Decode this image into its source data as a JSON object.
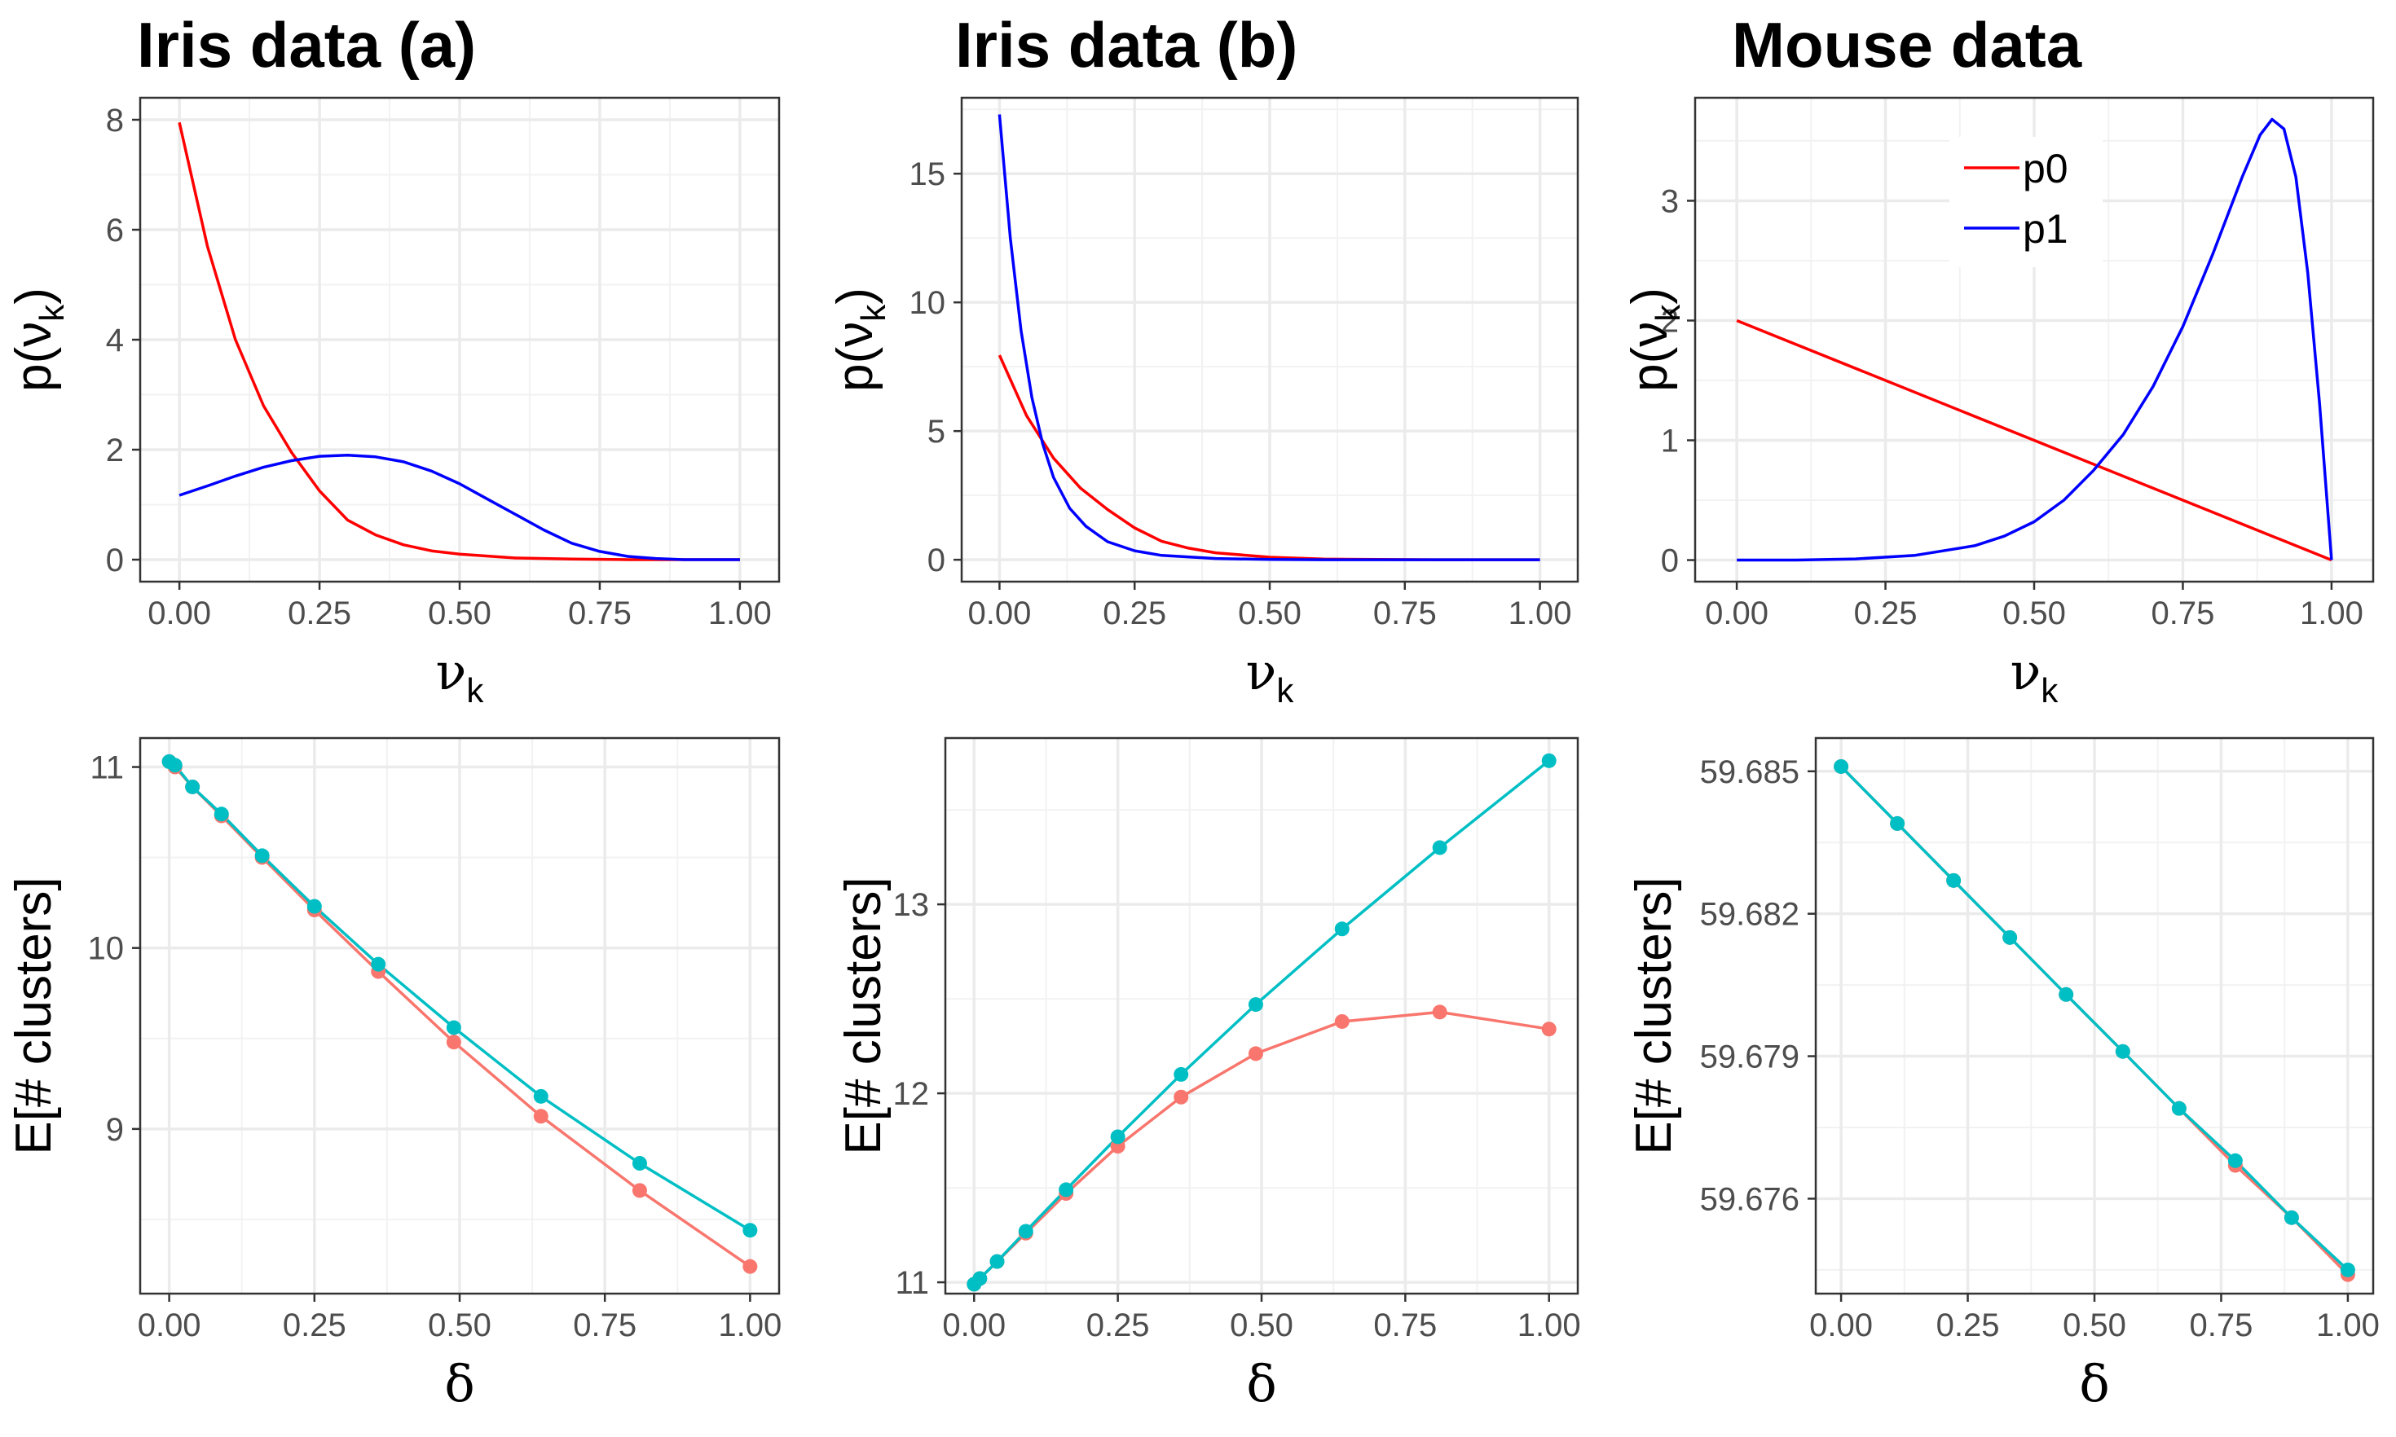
{
  "chart_data": [
    {
      "id": "iris-a-density",
      "type": "line",
      "title": "Iris data (a)",
      "xlabel": "ν",
      "xlabel_sub": "k",
      "ylabel_pre": "p(ν",
      "ylabel_sub": "k",
      "ylabel_post": ")",
      "xlim": [
        -0.07,
        1.07
      ],
      "ylim": [
        -0.4,
        8.4
      ],
      "xticks": [
        0,
        0.25,
        0.5,
        0.75,
        1.0
      ],
      "xtick_labels": [
        "0.00",
        "0.25",
        "0.50",
        "0.75",
        "1.00"
      ],
      "yticks": [
        0,
        2,
        4,
        6,
        8
      ],
      "ytick_labels": [
        "0",
        "2",
        "4",
        "6",
        "8"
      ],
      "grid": true,
      "series": [
        {
          "color": "#ff0000",
          "x": [
            0,
            0.05,
            0.1,
            0.15,
            0.2,
            0.25,
            0.3,
            0.35,
            0.4,
            0.45,
            0.5,
            0.6,
            0.7,
            0.8,
            0.9,
            1.0
          ],
          "y": [
            7.95,
            5.7,
            4.0,
            2.8,
            1.95,
            1.25,
            0.72,
            0.45,
            0.27,
            0.16,
            0.1,
            0.03,
            0.01,
            0.0,
            0.0,
            0.0
          ]
        },
        {
          "color": "#0000ff",
          "x": [
            0,
            0.05,
            0.1,
            0.15,
            0.2,
            0.25,
            0.3,
            0.35,
            0.4,
            0.45,
            0.5,
            0.55,
            0.6,
            0.65,
            0.7,
            0.75,
            0.8,
            0.85,
            0.9,
            1.0
          ],
          "y": [
            1.17,
            1.34,
            1.52,
            1.68,
            1.8,
            1.88,
            1.9,
            1.87,
            1.78,
            1.61,
            1.38,
            1.1,
            0.82,
            0.54,
            0.3,
            0.15,
            0.06,
            0.02,
            0.0,
            0.0
          ]
        }
      ]
    },
    {
      "id": "iris-b-density",
      "type": "line",
      "title": "Iris data (b)",
      "xlabel": "ν",
      "xlabel_sub": "k",
      "ylabel_pre": "p(ν",
      "ylabel_sub": "k",
      "ylabel_post": ")",
      "xlim": [
        -0.07,
        1.07
      ],
      "ylim": [
        -0.85,
        17.95
      ],
      "xticks": [
        0,
        0.25,
        0.5,
        0.75,
        1.0
      ],
      "xtick_labels": [
        "0.00",
        "0.25",
        "0.50",
        "0.75",
        "1.00"
      ],
      "yticks": [
        0,
        5,
        10,
        15
      ],
      "ytick_labels": [
        "0",
        "5",
        "10",
        "15"
      ],
      "grid": true,
      "series": [
        {
          "color": "#ff0000",
          "x": [
            0,
            0.05,
            0.1,
            0.15,
            0.2,
            0.25,
            0.3,
            0.35,
            0.4,
            0.5,
            0.6,
            0.7,
            0.8,
            1.0
          ],
          "y": [
            7.95,
            5.6,
            3.95,
            2.78,
            1.95,
            1.24,
            0.72,
            0.45,
            0.27,
            0.1,
            0.03,
            0.01,
            0.0,
            0.0
          ]
        },
        {
          "color": "#0000ff",
          "x": [
            0,
            0.02,
            0.04,
            0.06,
            0.08,
            0.1,
            0.13,
            0.16,
            0.2,
            0.25,
            0.3,
            0.4,
            0.5,
            0.6,
            0.8,
            1.0
          ],
          "y": [
            17.3,
            12.5,
            8.9,
            6.3,
            4.5,
            3.2,
            2.0,
            1.3,
            0.7,
            0.35,
            0.17,
            0.05,
            0.01,
            0.0,
            0.0,
            0.0
          ]
        }
      ]
    },
    {
      "id": "mouse-density",
      "type": "line",
      "title": "Mouse data",
      "xlabel": "ν",
      "xlabel_sub": "k",
      "ylabel_pre": "p(ν",
      "ylabel_sub": "k",
      "ylabel_post": ")",
      "xlim": [
        -0.07,
        1.07
      ],
      "ylim": [
        -0.18,
        3.86
      ],
      "xticks": [
        0,
        0.25,
        0.5,
        0.75,
        1.0
      ],
      "xtick_labels": [
        "0.00",
        "0.25",
        "0.50",
        "0.75",
        "1.00"
      ],
      "yticks": [
        0,
        1,
        2,
        3
      ],
      "ytick_labels": [
        "0",
        "1",
        "2",
        "3"
      ],
      "grid": true,
      "legend": {
        "position": "top-center",
        "entries": [
          {
            "label": "p0",
            "color": "#ff0000"
          },
          {
            "label": "p1",
            "color": "#0000ff"
          }
        ]
      },
      "series": [
        {
          "color": "#ff0000",
          "x": [
            0,
            1.0
          ],
          "y": [
            2.0,
            0.0
          ]
        },
        {
          "color": "#0000ff",
          "x": [
            0,
            0.1,
            0.2,
            0.3,
            0.4,
            0.45,
            0.5,
            0.55,
            0.6,
            0.65,
            0.7,
            0.75,
            0.8,
            0.85,
            0.88,
            0.9,
            0.92,
            0.94,
            0.96,
            0.98,
            1.0
          ],
          "y": [
            0,
            0.0,
            0.01,
            0.04,
            0.12,
            0.2,
            0.32,
            0.5,
            0.75,
            1.05,
            1.45,
            1.95,
            2.55,
            3.2,
            3.55,
            3.68,
            3.6,
            3.2,
            2.4,
            1.3,
            0.0
          ]
        }
      ]
    },
    {
      "id": "iris-a-clusters",
      "type": "line",
      "xlabel": "δ",
      "ylabel": "E[# clusters]",
      "xlim": [
        -0.05,
        1.05
      ],
      "ylim": [
        8.09,
        11.16
      ],
      "xticks": [
        0,
        0.25,
        0.5,
        0.75,
        1.0
      ],
      "xtick_labels": [
        "0.00",
        "0.25",
        "0.50",
        "0.75",
        "1.00"
      ],
      "yticks": [
        9,
        10,
        11
      ],
      "ytick_labels": [
        "9",
        "10",
        "11"
      ],
      "grid": true,
      "markers": true,
      "series": [
        {
          "color": "#f8766d",
          "x": [
            0,
            0.01,
            0.04,
            0.09,
            0.16,
            0.25,
            0.36,
            0.49,
            0.64,
            0.81,
            1.0
          ],
          "y": [
            11.03,
            11.0,
            10.89,
            10.73,
            10.5,
            10.21,
            9.87,
            9.48,
            9.07,
            8.66,
            8.24
          ]
        },
        {
          "color": "#00bfc4",
          "x": [
            0,
            0.01,
            0.04,
            0.09,
            0.16,
            0.25,
            0.36,
            0.49,
            0.64,
            0.81,
            1.0
          ],
          "y": [
            11.03,
            11.01,
            10.89,
            10.74,
            10.51,
            10.23,
            9.91,
            9.56,
            9.18,
            8.81,
            8.44
          ]
        }
      ]
    },
    {
      "id": "iris-b-clusters",
      "type": "line",
      "xlabel": "δ",
      "ylabel": "E[# clusters]",
      "xlim": [
        -0.05,
        1.05
      ],
      "ylim": [
        10.94,
        13.88
      ],
      "xticks": [
        0,
        0.25,
        0.5,
        0.75,
        1.0
      ],
      "xtick_labels": [
        "0.00",
        "0.25",
        "0.50",
        "0.75",
        "1.00"
      ],
      "yticks": [
        11,
        12,
        13
      ],
      "ytick_labels": [
        "11",
        "12",
        "13"
      ],
      "grid": true,
      "markers": true,
      "series": [
        {
          "color": "#f8766d",
          "x": [
            0,
            0.01,
            0.04,
            0.09,
            0.16,
            0.25,
            0.36,
            0.49,
            0.64,
            0.81,
            1.0
          ],
          "y": [
            10.99,
            11.02,
            11.11,
            11.26,
            11.47,
            11.72,
            11.98,
            12.21,
            12.38,
            12.43,
            12.34
          ]
        },
        {
          "color": "#00bfc4",
          "x": [
            0,
            0.01,
            0.04,
            0.09,
            0.16,
            0.25,
            0.36,
            0.49,
            0.64,
            0.81,
            1.0
          ],
          "y": [
            10.99,
            11.02,
            11.11,
            11.27,
            11.49,
            11.77,
            12.1,
            12.47,
            12.87,
            13.3,
            13.76
          ]
        }
      ]
    },
    {
      "id": "mouse-clusters",
      "type": "line",
      "xlabel": "δ",
      "ylabel": "E[# clusters]",
      "xlim": [
        -0.05,
        1.05
      ],
      "ylim": [
        59.674,
        59.6857
      ],
      "xticks": [
        0,
        0.25,
        0.5,
        0.75,
        1.0
      ],
      "xtick_labels": [
        "0.00",
        "0.25",
        "0.50",
        "0.75",
        "1.00"
      ],
      "yticks": [
        59.676,
        59.679,
        59.682,
        59.685
      ],
      "ytick_labels": [
        "59.676",
        "59.679",
        "59.682",
        "59.685"
      ],
      "grid": true,
      "markers": true,
      "series": [
        {
          "color": "#f8766d",
          "x": [
            0,
            0.111,
            0.222,
            0.333,
            0.444,
            0.556,
            0.667,
            0.778,
            0.889,
            1.0
          ],
          "y": [
            59.6851,
            59.6839,
            59.6827,
            59.6815,
            59.6803,
            59.6791,
            59.6779,
            59.6767,
            59.6756,
            59.6744
          ]
        },
        {
          "color": "#00bfc4",
          "x": [
            0,
            0.111,
            0.222,
            0.333,
            0.444,
            0.556,
            0.667,
            0.778,
            0.889,
            1.0
          ],
          "y": [
            59.6851,
            59.6839,
            59.6827,
            59.6815,
            59.6803,
            59.6791,
            59.6779,
            59.6768,
            59.6756,
            59.6745
          ]
        }
      ]
    }
  ]
}
